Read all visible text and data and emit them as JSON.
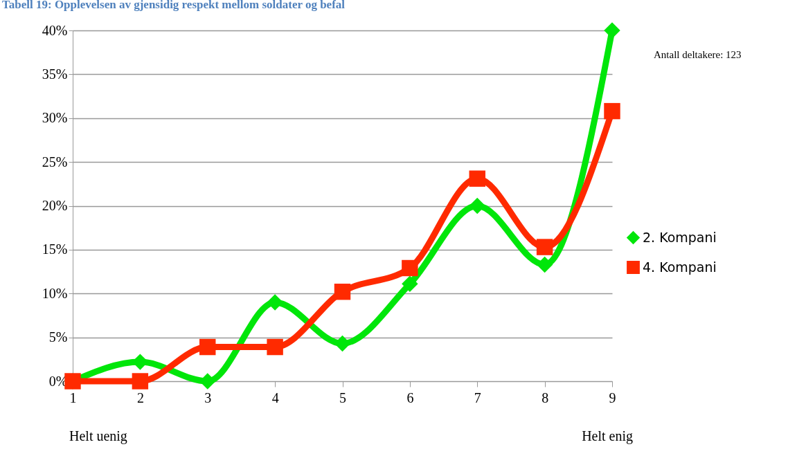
{
  "chart_data": {
    "type": "line",
    "title": "Tabell 19: Opplevelsen av gjensidig respekt mellom soldater og befal",
    "categories": [
      "1",
      "2",
      "3",
      "4",
      "5",
      "6",
      "7",
      "8",
      "9"
    ],
    "series": [
      {
        "name": "2. Kompani",
        "color": "#00e60a",
        "marker": "diamond",
        "values": [
          0,
          2.2,
          0,
          9.0,
          4.3,
          11.1,
          20.0,
          13.3,
          40.0
        ]
      },
      {
        "name": "4. Kompani",
        "color": "#ff2a00",
        "marker": "square",
        "values": [
          0,
          0,
          3.9,
          3.9,
          10.2,
          12.9,
          23.1,
          15.3,
          30.8
        ]
      }
    ],
    "ylim": [
      0,
      40
    ],
    "yticks": [
      {
        "value": 0,
        "label": "0%"
      },
      {
        "value": 5,
        "label": "5%"
      },
      {
        "value": 10,
        "label": "10%"
      },
      {
        "value": 15,
        "label": "15%"
      },
      {
        "value": 20,
        "label": "20%"
      },
      {
        "value": 25,
        "label": "25%"
      },
      {
        "value": 30,
        "label": "30%"
      },
      {
        "value": 35,
        "label": "35%"
      },
      {
        "value": 40,
        "label": "40%"
      }
    ],
    "grid": "y",
    "legend": "right",
    "annotations": [
      "Antall deltakere: 123",
      "Helt uenig",
      "Helt enig"
    ]
  }
}
